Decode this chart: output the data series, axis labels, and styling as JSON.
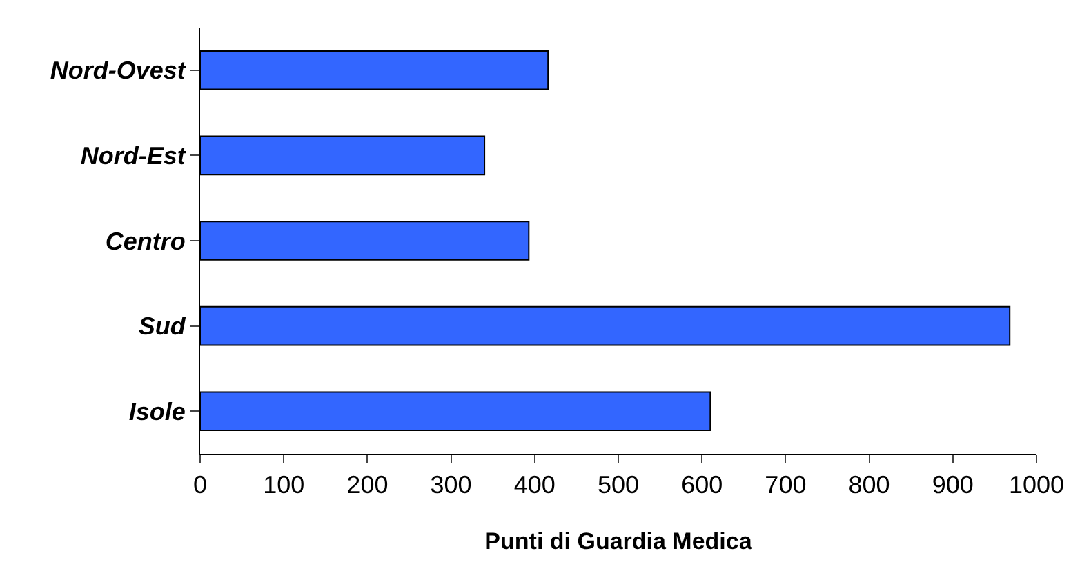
{
  "chart_data": {
    "type": "bar",
    "orientation": "horizontal",
    "xlabel": "Punti di Guardia Medica",
    "categories": [
      "Nord-Ovest",
      "Nord-Est",
      "Centro",
      "Sud",
      "Isole"
    ],
    "values": [
      416,
      340,
      393,
      968,
      610
    ],
    "color": "#3366ff",
    "xlim": [
      0,
      1000
    ],
    "xticks": [
      0,
      100,
      200,
      300,
      400,
      500,
      600,
      700,
      800,
      900,
      1000
    ],
    "grid": false,
    "legend": false
  }
}
